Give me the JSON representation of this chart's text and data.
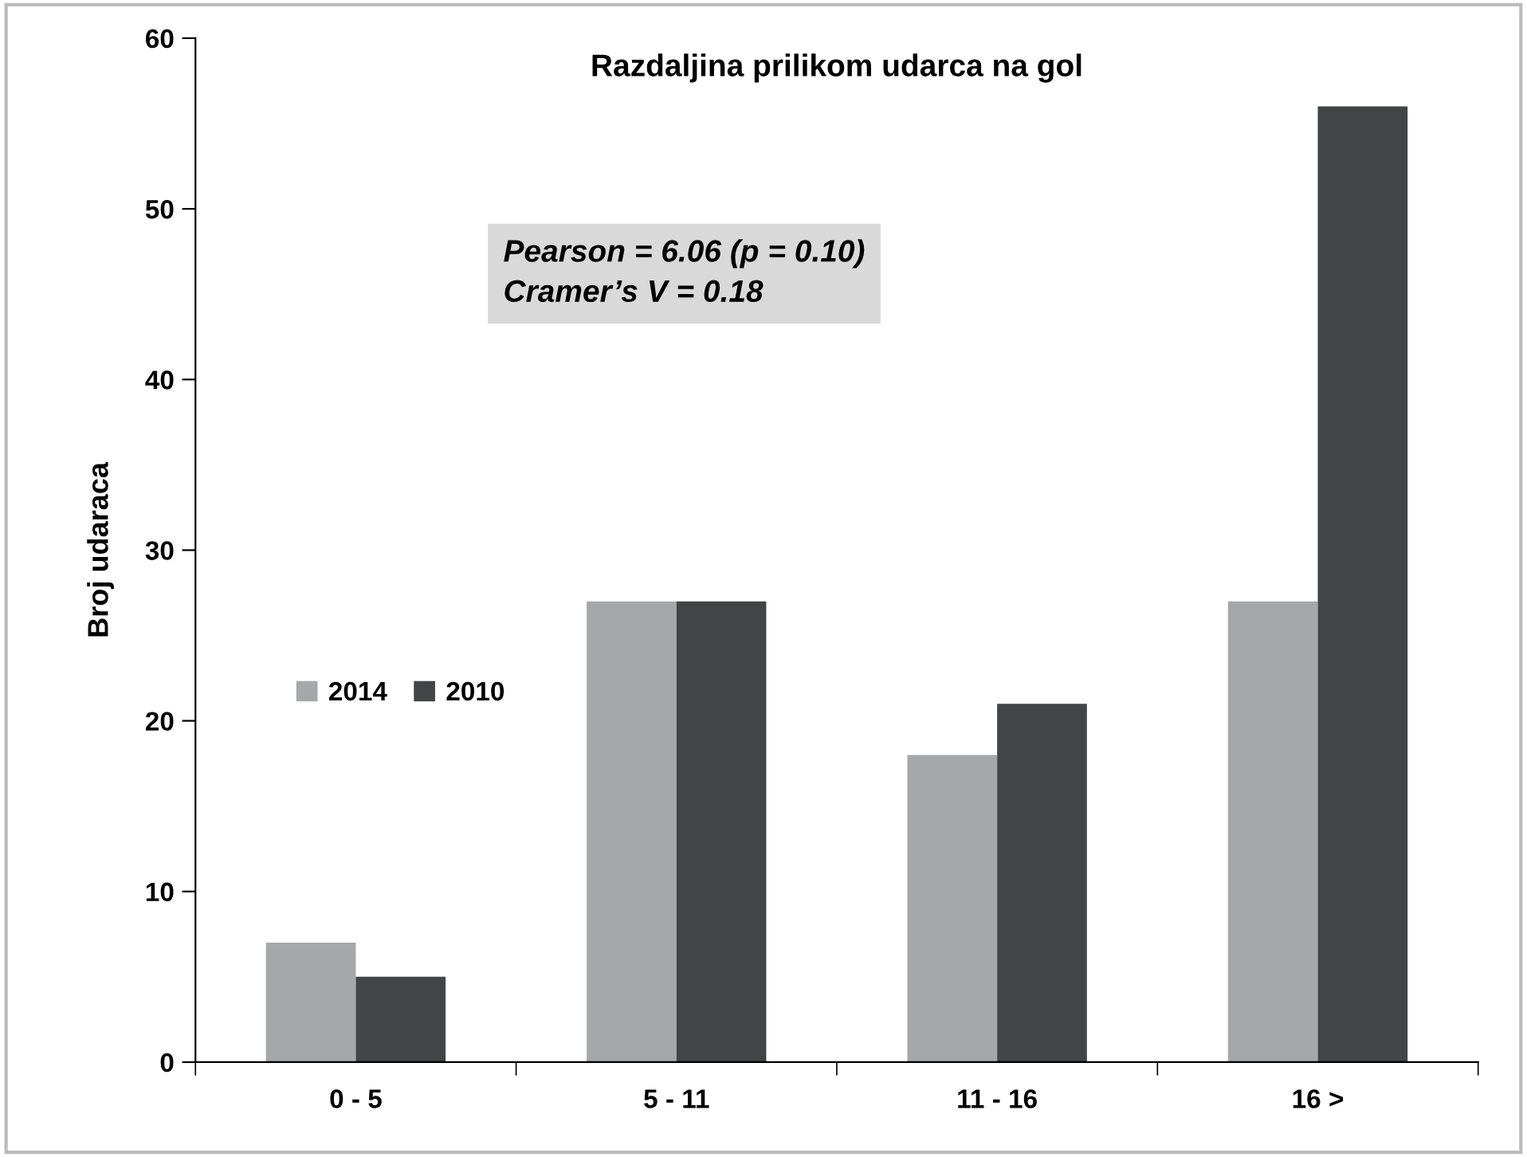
{
  "chart_data": {
    "type": "bar",
    "title": "Razdaljina prilikom udarca na gol",
    "ylabel": "Broj udaraca",
    "categories": [
      "0 - 5",
      "5 - 11",
      "11 - 16",
      "16 >"
    ],
    "series": [
      {
        "name": "2014",
        "color": "#a6a7a9",
        "values": [
          7,
          27,
          18,
          27
        ]
      },
      {
        "name": "2010",
        "color": "#434446",
        "values": [
          5,
          27,
          21,
          56
        ]
      }
    ],
    "ylim": [
      0,
      60
    ],
    "yticks": [
      0,
      10,
      20,
      30,
      40,
      50,
      60
    ],
    "grid": false,
    "legend": "left",
    "annotations": [
      "Pearson = 6.06 (p = 0.10)",
      "Cramer’s V = 0.18"
    ]
  }
}
